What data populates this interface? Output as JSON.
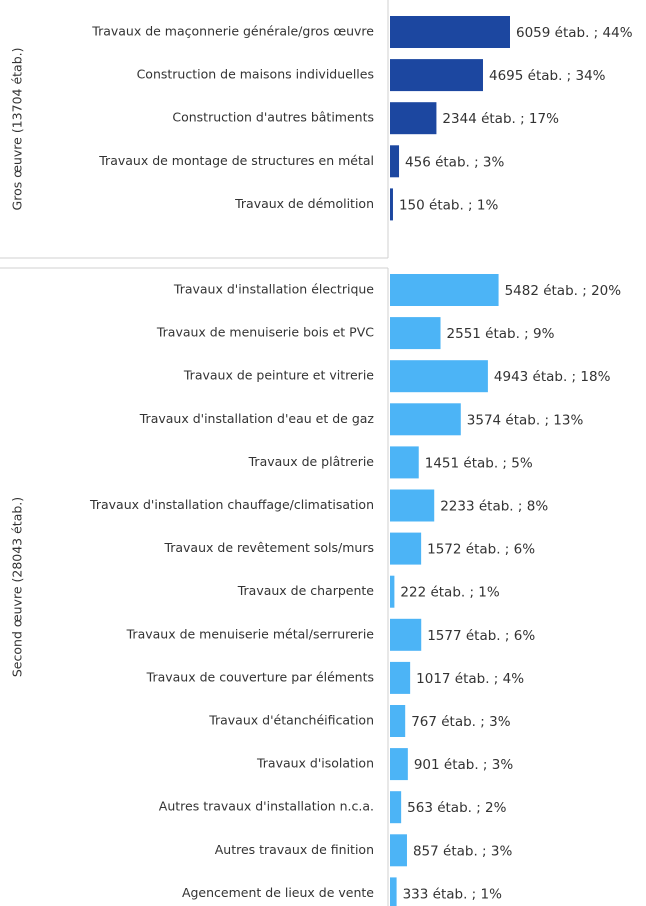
{
  "chart_data": {
    "type": "bar",
    "orientation": "horizontal",
    "groups": [
      {
        "name": "Gros œuvre (13704 étab.)",
        "color": "#1c47a0",
        "categories": [
          "Travaux de maçonnerie générale/gros œuvre",
          "Construction de maisons individuelles",
          "Construction d'autres bâtiments",
          "Travaux de montage de structures en métal",
          "Travaux de démolition"
        ],
        "values": [
          6059,
          4695,
          2344,
          456,
          150
        ],
        "value_labels": [
          "6059 étab. ; 44%",
          "4695 étab. ; 34%",
          "2344 étab. ; 17%",
          "456 étab. ; 3%",
          "150 étab. ; 1%"
        ]
      },
      {
        "name": "Second œuvre (28043 étab.)",
        "color": "#4cb4f6",
        "categories": [
          "Travaux d'installation électrique",
          "Travaux de menuiserie bois et PVC",
          "Travaux de peinture et vitrerie",
          "Travaux d'installation d'eau et de gaz",
          "Travaux de plâtrerie",
          "Travaux d'installation chauffage/climatisation",
          "Travaux de revêtement sols/murs",
          "Travaux de charpente",
          "Travaux de menuiserie métal/serrurerie",
          "Travaux de couverture par éléments",
          "Travaux d'étanchéification",
          "Travaux d'isolation",
          "Autres travaux d'installation n.c.a.",
          "Autres travaux de finition",
          "Agencement de lieux de vente"
        ],
        "values": [
          5482,
          2551,
          4943,
          3574,
          1451,
          2233,
          1572,
          222,
          1577,
          1017,
          767,
          901,
          563,
          857,
          333
        ],
        "value_labels": [
          "5482 étab. ; 20%",
          "2551 étab. ; 9%",
          "4943 étab. ; 18%",
          "3574 étab. ; 13%",
          "1451 étab. ; 5%",
          "2233 étab. ; 8%",
          "1572 étab. ; 6%",
          "222 étab. ; 1%",
          "1577 étab. ; 6%",
          "1017 étab. ; 4%",
          "767 étab. ; 3%",
          "901 étab. ; 3%",
          "563 étab. ; 2%",
          "857 étab. ; 3%",
          "333 étab. ; 1%"
        ]
      }
    ]
  }
}
